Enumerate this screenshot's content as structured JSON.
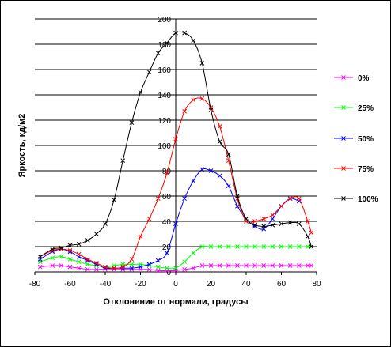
{
  "chart_data": {
    "type": "line",
    "xlabel": "Отклонение от нормали, градусы",
    "ylabel": "Яркость, кд/м2",
    "xlim": [
      -80,
      80
    ],
    "ylim": [
      0,
      200
    ],
    "x_ticks": [
      -80,
      -60,
      -40,
      -20,
      0,
      20,
      40,
      60,
      80
    ],
    "y_ticks": [
      0,
      20,
      40,
      60,
      80,
      100,
      120,
      140,
      160,
      180,
      200
    ],
    "x_tick_labels": [
      "-80",
      "-60",
      "-40",
      "-20",
      "0",
      "20",
      "40",
      "60",
      "80"
    ],
    "y_tick_labels": [
      "0",
      "20",
      "40",
      "60",
      "80",
      "100",
      "120",
      "140",
      "160",
      "180",
      "200"
    ],
    "grid": "horizontal",
    "legend_position": "right",
    "series": [
      {
        "name": "0%",
        "color": "#FF00FF",
        "x": [
          -77,
          -70,
          -65,
          -60,
          -55,
          -50,
          -45,
          -40,
          -35,
          -30,
          -25,
          -20,
          -15,
          -10,
          -5,
          0,
          5,
          10,
          15,
          20,
          25,
          30,
          35,
          40,
          45,
          50,
          55,
          60,
          65,
          70,
          75,
          77
        ],
        "y": [
          4,
          5,
          5,
          4,
          3,
          2,
          2,
          2,
          2,
          2,
          2,
          2,
          2,
          1,
          1,
          1,
          2,
          3,
          5,
          5,
          5,
          5,
          5,
          5,
          5,
          5,
          5,
          5,
          5,
          5,
          5,
          5
        ]
      },
      {
        "name": "25%",
        "color": "#00FF00",
        "x": [
          -77,
          -70,
          -65,
          -60,
          -55,
          -50,
          -45,
          -40,
          -35,
          -30,
          -25,
          -20,
          -15,
          -10,
          -5,
          0,
          5,
          10,
          15,
          20,
          25,
          30,
          35,
          40,
          45,
          50,
          55,
          60,
          65,
          70,
          75,
          77
        ],
        "y": [
          8,
          11,
          12,
          10,
          8,
          6,
          5,
          4,
          5,
          6,
          6,
          6,
          5,
          4,
          3,
          3,
          8,
          15,
          20,
          20,
          20,
          20,
          20,
          20,
          20,
          20,
          20,
          20,
          20,
          20,
          20,
          20
        ]
      },
      {
        "name": "50%",
        "color": "#0000FF",
        "x": [
          -77,
          -70,
          -65,
          -60,
          -55,
          -50,
          -45,
          -40,
          -35,
          -30,
          -25,
          -20,
          -15,
          -10,
          -5,
          0,
          5,
          10,
          15,
          20,
          25,
          30,
          35,
          40,
          45,
          50,
          55,
          60,
          65,
          70
        ],
        "y": [
          10,
          16,
          18,
          16,
          12,
          9,
          6,
          3,
          3,
          3,
          3,
          4,
          6,
          9,
          15,
          38,
          58,
          72,
          81,
          80,
          76,
          68,
          52,
          42,
          36,
          34,
          42,
          52,
          58,
          56
        ]
      },
      {
        "name": "75%",
        "color": "#FF0000",
        "x": [
          -77,
          -70,
          -65,
          -60,
          -55,
          -50,
          -45,
          -40,
          -35,
          -30,
          -25,
          -20,
          -15,
          -10,
          -5,
          0,
          5,
          10,
          15,
          20,
          25,
          30,
          35,
          40,
          45,
          50,
          55,
          60,
          65,
          70,
          75,
          77
        ],
        "y": [
          12,
          17,
          18,
          17,
          14,
          10,
          7,
          4,
          3,
          4,
          10,
          28,
          42,
          58,
          78,
          105,
          127,
          136,
          137,
          130,
          115,
          88,
          58,
          40,
          40,
          42,
          45,
          52,
          58,
          58,
          40,
          31
        ]
      },
      {
        "name": "100%",
        "color": "#000000",
        "x": [
          -77,
          -70,
          -65,
          -60,
          -55,
          -50,
          -45,
          -40,
          -35,
          -30,
          -25,
          -20,
          -15,
          -10,
          -5,
          0,
          5,
          10,
          15,
          20,
          25,
          30,
          35,
          40,
          45,
          50,
          55,
          60,
          65,
          70,
          75,
          77
        ],
        "y": [
          12,
          18,
          19,
          21,
          22,
          25,
          30,
          38,
          57,
          88,
          118,
          142,
          158,
          173,
          181,
          189,
          189,
          183,
          165,
          128,
          103,
          93,
          60,
          42,
          37,
          36,
          37,
          38,
          39,
          38,
          28,
          20
        ]
      }
    ]
  }
}
